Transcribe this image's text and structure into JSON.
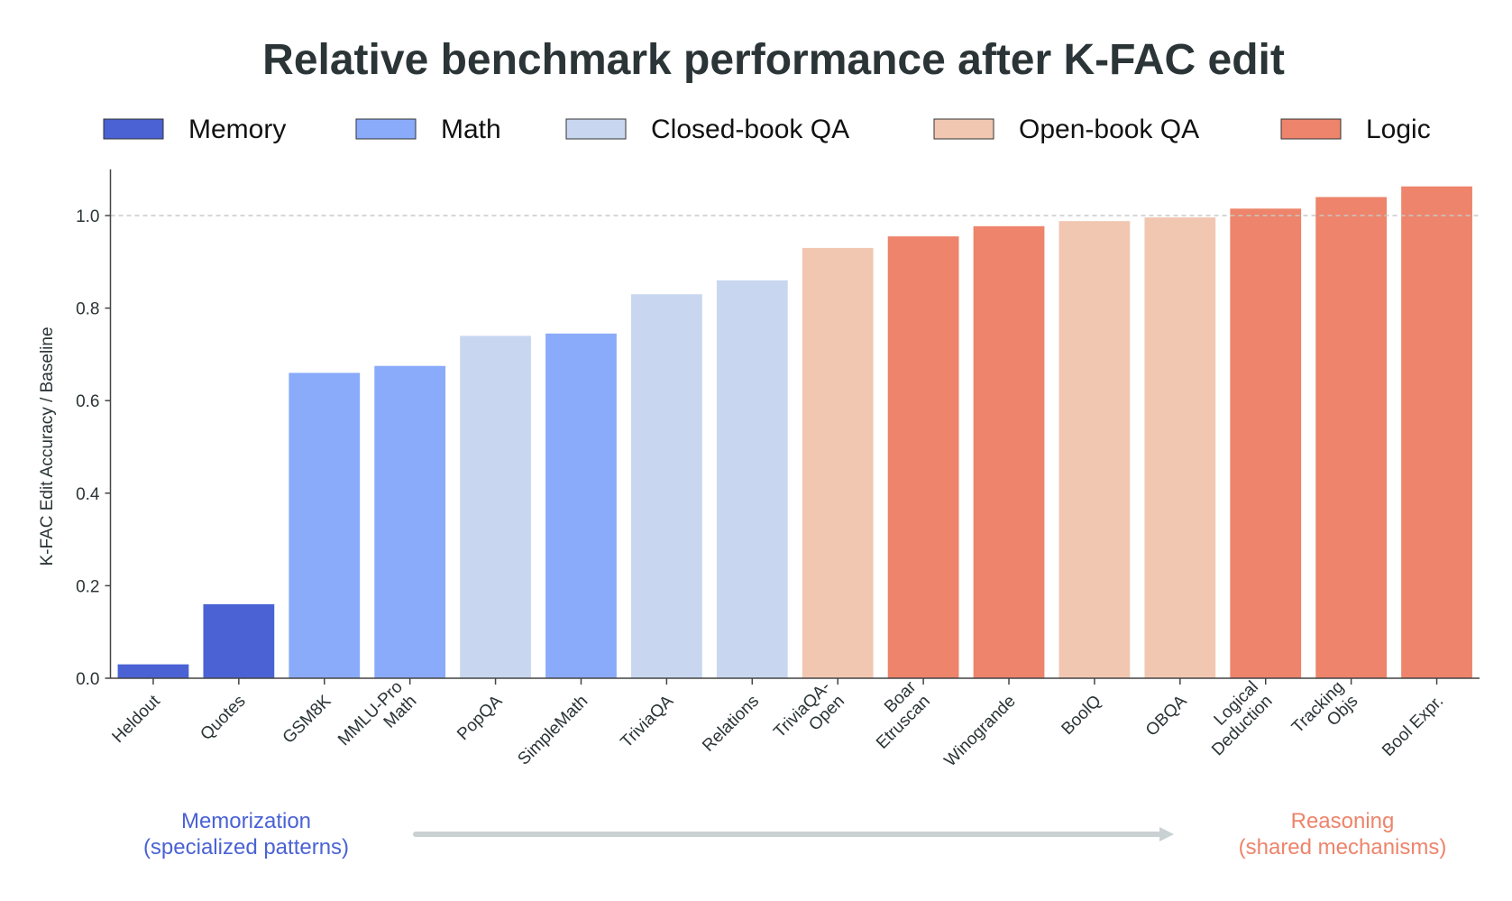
{
  "chart_data": {
    "type": "bar",
    "title": "Relative benchmark performance after K-FAC edit",
    "xlabel": "",
    "ylabel": "K-FAC Edit Accuracy / Baseline",
    "ylim": [
      0,
      1.1
    ],
    "yticks": [
      "0.0",
      "0.2",
      "0.4",
      "0.6",
      "0.8",
      "1.0"
    ],
    "reference_line": {
      "y": 1.0,
      "style": "dashed",
      "color": "#c8c8c8"
    },
    "grid": false,
    "legend_placement": "top",
    "legend": [
      {
        "name": "Memory",
        "color": "#4a62d4"
      },
      {
        "name": "Math",
        "color": "#8aabfa"
      },
      {
        "name": "Closed-book QA",
        "color": "#c8d7ef"
      },
      {
        "name": "Open-book QA",
        "color": "#f1c7b1"
      },
      {
        "name": "Logic",
        "color": "#ed846b"
      }
    ],
    "categories": [
      "Heldout",
      "Quotes",
      "GSM8K",
      "MMLU-Pro\nMath",
      "PopQA",
      "SimpleMath",
      "TriviaQA",
      "Relations",
      "TriviaQA-\nOpen",
      "Boar\nEtruscan",
      "Winogrande",
      "BoolQ",
      "OBQA",
      "Logical\nDeduction",
      "Tracking\nObjs",
      "Bool Expr."
    ],
    "groups": [
      "Memory",
      "Memory",
      "Math",
      "Math",
      "Closed-book QA",
      "Math",
      "Closed-book QA",
      "Closed-book QA",
      "Open-book QA",
      "Logic",
      "Logic",
      "Open-book QA",
      "Open-book QA",
      "Logic",
      "Logic",
      "Logic"
    ],
    "values": [
      0.03,
      0.16,
      0.66,
      0.675,
      0.74,
      0.745,
      0.83,
      0.86,
      0.93,
      0.955,
      0.977,
      0.988,
      0.996,
      1.015,
      1.04,
      1.063
    ],
    "annotations": {
      "left": {
        "line1": "Memorization",
        "line2": "(specialized patterns)",
        "color": "#4a62d4"
      },
      "right": {
        "line1": "Reasoning",
        "line2": "(shared mechanisms)",
        "color": "#ed846b"
      },
      "arrow_color": "#c9d1d3"
    }
  }
}
